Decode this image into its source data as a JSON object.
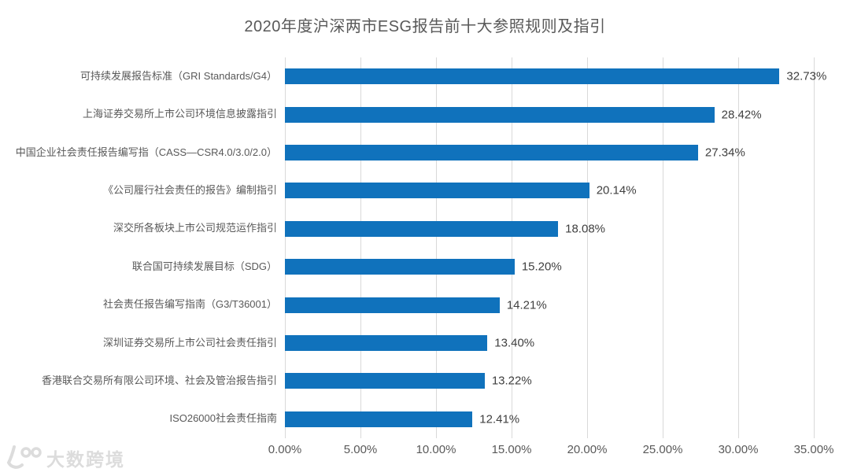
{
  "title": "2020年度沪深两市ESG报告前十大参照规则及指引",
  "watermark": {
    "brand": "大数跨境"
  },
  "chart_data": {
    "type": "bar",
    "orientation": "horizontal",
    "title": "2020年度沪深两市ESG报告前十大参照规则及指引",
    "categories": [
      "可持续发展报告标准（GRI Standards/G4）",
      "上海证券交易所上市公司环境信息披露指引",
      "中国企业社会责任报告编写指（CASS—CSR4.0/3.0/2.0）",
      "《公司履行社会责任的报告》编制指引",
      "深交所各板块上市公司规范运作指引",
      "联合国可持续发展目标（SDG）",
      "社会责任报告编写指南（G3/T36001）",
      "深圳证券交易所上市公司社会责任指引",
      "香港联合交易所有限公司环境、社会及管治报告指引",
      "ISO26000社会责任指南"
    ],
    "values": [
      32.73,
      28.42,
      27.34,
      20.14,
      18.08,
      15.2,
      14.21,
      13.4,
      13.22,
      12.41
    ],
    "value_labels": [
      "32.73%",
      "28.42%",
      "27.34%",
      "20.14%",
      "18.08%",
      "15.20%",
      "14.21%",
      "13.40%",
      "13.22%",
      "12.41%"
    ],
    "x_ticks": [
      "0.00%",
      "5.00%",
      "10.00%",
      "15.00%",
      "20.00%",
      "25.00%",
      "30.00%",
      "35.00%"
    ],
    "xlim": [
      0,
      35
    ],
    "grid": "vertical-gridlines",
    "legend": "none",
    "colors": {
      "bar": "#1072BC",
      "gridline": "#D9D9D9",
      "title_text": "#595959",
      "category_text": "#595959",
      "value_text": "#3F3F3F",
      "tick_text": "#595959",
      "background": "#FFFFFF",
      "watermark": "#DCDCDC"
    }
  }
}
